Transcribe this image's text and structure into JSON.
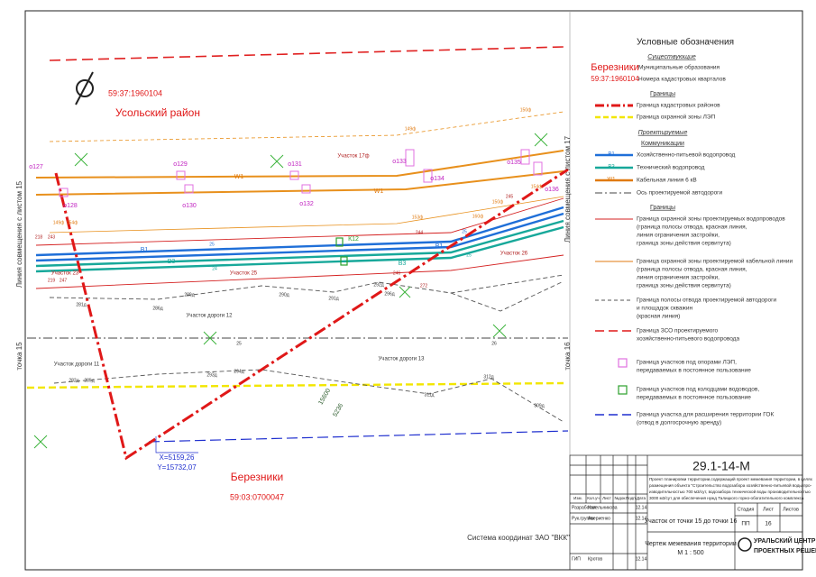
{
  "map": {
    "labels": [
      "59:37:1960104",
      "Усольский район",
      "Березники",
      "59:03:0700047",
      "Участок 17ф",
      "Участок 23",
      "Участок 25",
      "Участок 26",
      "Участок дороги 12",
      "Участок дороги 11",
      "Участок дороги 13",
      "Линия совмещения с листом 15",
      "Линия совмещения с листом 17",
      "точка 15",
      "точка 16",
      "X=5159,26",
      "Y=15732,07",
      "Система координат ЗАО \"ВКК\"",
      "о127",
      "о128",
      "о129",
      "о130",
      "о131",
      "о132",
      "о133",
      "о134",
      "о135",
      "о136",
      "W1",
      "W1",
      "В1",
      "В3",
      "В1",
      "В3",
      "К12",
      "149ф",
      "150ф",
      "15600",
      "5236",
      "218",
      "243",
      "219",
      "247",
      "281д",
      "286д",
      "289д",
      "290д",
      "291д",
      "292д",
      "296д",
      "282д",
      "285д",
      "293д",
      "294д",
      "311д",
      "312д",
      "309д",
      "246",
      "244",
      "245",
      "272",
      "25",
      "24",
      "25",
      "25",
      "25",
      "26",
      "149ф",
      "154ф",
      "153ф",
      "160ф",
      "154ф",
      "150ф"
    ]
  },
  "legend": {
    "title": "Условные обозначения",
    "headings": [
      "Существующие",
      "Границы",
      "Проектируемые",
      "Коммуникации",
      "Границы"
    ],
    "entries": [
      {
        "symbol": "Березники",
        "lines": [
          "Муниципальные образования"
        ]
      },
      {
        "symbol": "59:37:1960104",
        "lines": [
          "Номера кадастровых кварталов"
        ]
      },
      {
        "lines": [
          "Граница кадастровых районов"
        ]
      },
      {
        "lines": [
          "Граница охранной зоны ЛЭП"
        ]
      },
      {
        "symbol": "В1",
        "lines": [
          "Хозяйственно-питьевой водопровод"
        ]
      },
      {
        "symbol": "В3",
        "lines": [
          "Технический водопровод"
        ]
      },
      {
        "symbol": "W1",
        "lines": [
          "Кабельная линия 6 кВ"
        ]
      },
      {
        "lines": [
          "Ось проектируемой автодороги"
        ]
      },
      {
        "lines": [
          "Граница охранной зоны проектируемых водопроводов",
          "(граница полосы отвода, красная линия,",
          "линия ограничения застройки,",
          "граница зоны действия сервитута)"
        ]
      },
      {
        "lines": [
          "Граница охранной зоны проектируемой кабельной линии",
          "(граница полосы отвода, красная линия,",
          "линия ограничения застройки,",
          "граница зоны действия сервитута)"
        ]
      },
      {
        "lines": [
          "Граница полосы отвода проектируемой автодороги",
          "и площадок скважин",
          "(красная линия)"
        ]
      },
      {
        "lines": [
          "Граница ЗСО проектируемого",
          "хозяйственно-питьевого водопровода"
        ]
      },
      {
        "lines": [
          "Граница участков под опорами ЛЭП,",
          "передаваемых в постоянное пользование"
        ]
      },
      {
        "lines": [
          "Граница участков под колодцами водоводов,",
          "передаваемых в постоянное пользование"
        ]
      },
      {
        "lines": [
          "Граница участка для расширения территории ГОК",
          "(отвод в долгосрочную аренду)"
        ]
      }
    ]
  },
  "title_block": {
    "code": "29.1-14-М",
    "description": [
      "Проект планировки территории,содержащий проект межевания территории, в целях",
      "размещения объекта \"Строительство водозабора хозяйственно-питьевой воды про-",
      "изводительностью 700 м3/сут, водозабора технической воды производительностью",
      "3000 м3/сут для обеспечения нужд Талицкого горно-обогатительного комплекса"
    ],
    "headers": [
      "Изм.",
      "Кол.уч",
      "Лист",
      "№док.",
      "Подп.",
      "Дата"
    ],
    "rows": [
      [
        "Разработал",
        "Копельникова",
        "12.14"
      ],
      [
        "Рук.группы",
        "Авериенко",
        "12.14"
      ],
      [
        "ГИП",
        "Кротов",
        "12.14"
      ]
    ],
    "sheet_title": "Участок от точки 15 до точки 16",
    "stage_headers": [
      "Стадия",
      "Лист",
      "Листов"
    ],
    "stage_values": [
      "ПП",
      "16"
    ],
    "drawing_title": "Чертеж межевания территории",
    "scale": "М 1 : 500",
    "company": [
      "УРАЛЬСКИЙ ЦЕНТР",
      "ПРОЕКТНЫХ РЕШЕНИЙ"
    ]
  }
}
